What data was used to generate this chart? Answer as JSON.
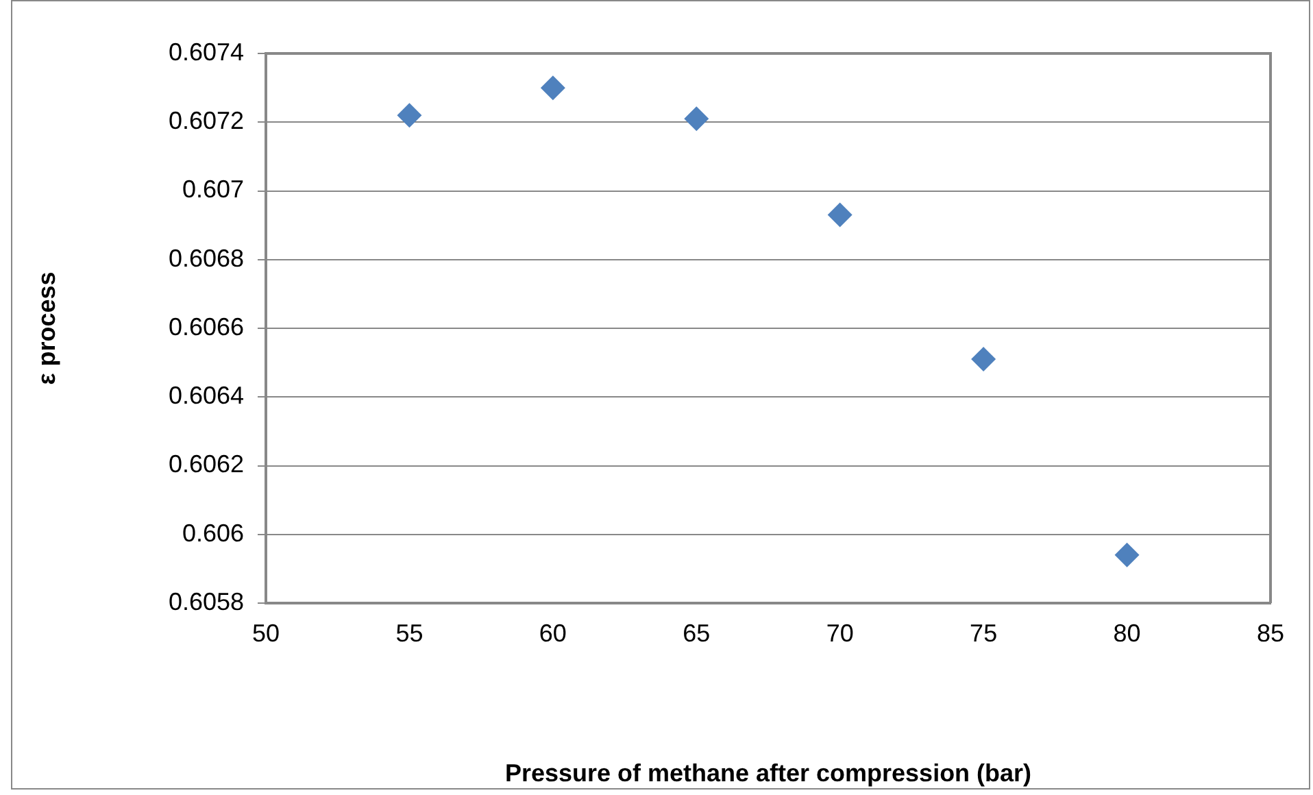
{
  "chart_data": {
    "type": "scatter",
    "xlabel": "Pressure of methane after compression (bar)",
    "ylabel": "ε process",
    "x": [
      55,
      60,
      65,
      70,
      75,
      80
    ],
    "series": [
      {
        "color": "#4f81bd",
        "values": [
          0.60722,
          0.6073,
          0.60721,
          0.60693,
          0.60651,
          0.60594
        ]
      }
    ],
    "xlim": [
      50,
      85
    ],
    "xticks": [
      50,
      55,
      60,
      65,
      70,
      75,
      80,
      85
    ],
    "ylim": [
      0.6058,
      0.6074
    ],
    "yticks": [
      0.6058,
      0.606,
      0.6062,
      0.6064,
      0.6066,
      0.6068,
      0.607,
      0.6072,
      0.6074
    ],
    "grid": "y",
    "legend": false,
    "marker": "diamond"
  }
}
